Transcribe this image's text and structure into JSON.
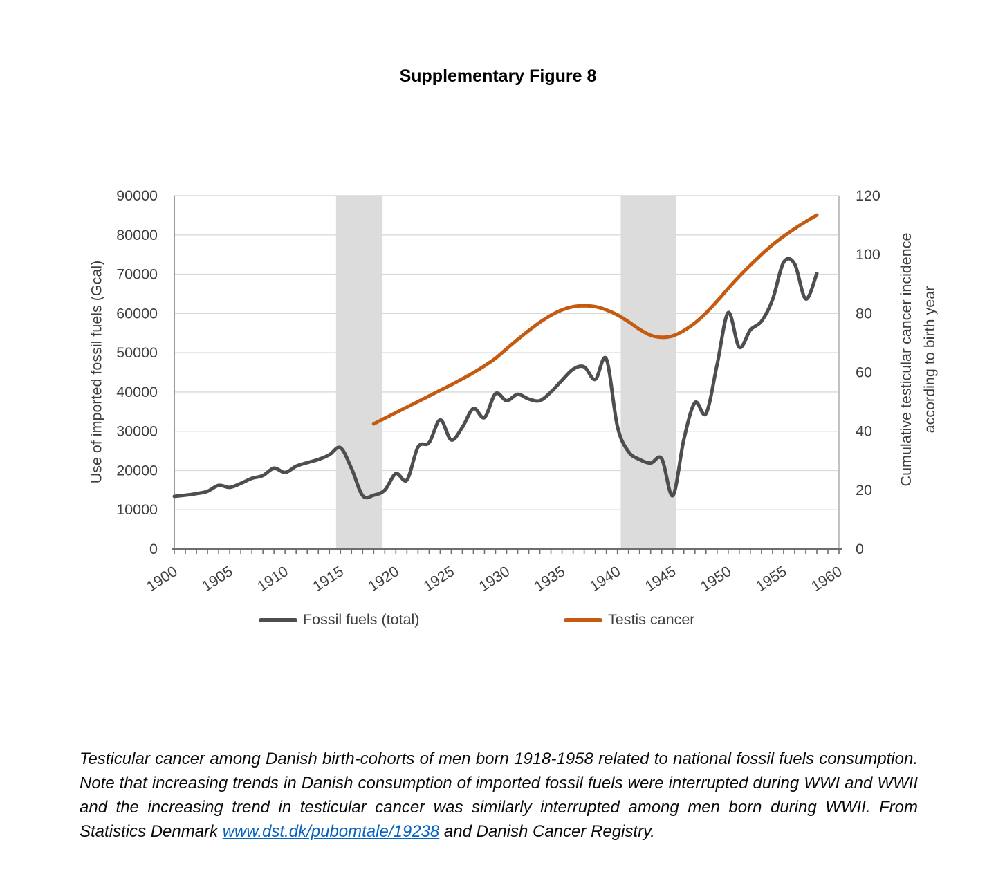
{
  "title": "Supplementary Figure 8",
  "chart_data": {
    "type": "line",
    "title": "Supplementary Figure 8",
    "grid": "horizontal",
    "legend_position": "bottom",
    "x_axis": {
      "min": 1900,
      "max": 1960,
      "minor_tick_step": 1,
      "tick_labels": [
        1900,
        1905,
        1910,
        1915,
        1920,
        1925,
        1930,
        1935,
        1940,
        1945,
        1950,
        1955,
        1960
      ]
    },
    "left_axis": {
      "label": "Use of imported fossil fuels (Gcal)",
      "min": 0,
      "max": 90000,
      "ticks": [
        0,
        10000,
        20000,
        30000,
        40000,
        50000,
        60000,
        70000,
        80000,
        90000
      ]
    },
    "right_axis": {
      "label_line1": "Cumulative testicular cancer incidence",
      "label_line2": "according to birth year",
      "min": 0,
      "max": 120,
      "ticks": [
        0,
        20,
        40,
        60,
        80,
        100,
        120
      ]
    },
    "shaded_bands": [
      {
        "name": "WWI",
        "from": 1914.6,
        "to": 1918.8,
        "color": "#dcdcdc"
      },
      {
        "name": "WWII",
        "from": 1940.3,
        "to": 1945.3,
        "color": "#dcdcdc"
      }
    ],
    "series": [
      {
        "name": "Fossil fuels (total)",
        "axis": "left",
        "color": "#4d4d52",
        "start_year": 1900,
        "values": [
          13400,
          13700,
          14100,
          14700,
          16200,
          15700,
          16700,
          18000,
          18700,
          20600,
          19500,
          21100,
          22000,
          22800,
          24000,
          25800,
          20500,
          13600,
          13700,
          15000,
          19200,
          17600,
          26000,
          27100,
          32900,
          27800,
          31000,
          35800,
          33500,
          39600,
          37800,
          39400,
          38200,
          37800,
          40000,
          43000,
          45800,
          46400,
          43200,
          48400,
          31200,
          24800,
          22800,
          21900,
          23000,
          13600,
          28000,
          37300,
          34500,
          47000,
          60200,
          51400,
          55800,
          58000,
          63500,
          73000,
          72600,
          63700,
          70200
        ]
      },
      {
        "name": "Testis cancer",
        "axis": "right",
        "color": "#c55a11",
        "start_year": 1918,
        "values": [
          42.5,
          44.4,
          46.3,
          48.2,
          50.1,
          52.0,
          53.9,
          55.8,
          57.8,
          59.9,
          62.2,
          64.8,
          68.0,
          71.2,
          74.2,
          77.0,
          79.4,
          81.2,
          82.3,
          82.6,
          82.3,
          81.2,
          79.5,
          77.2,
          74.6,
          72.6,
          71.9,
          72.4,
          74.2,
          76.8,
          80.2,
          84.2,
          88.5,
          92.6,
          96.4,
          100.0,
          103.3,
          106.2,
          108.8,
          111.2,
          113.4
        ]
      }
    ]
  },
  "caption": {
    "text_before_link": "Testicular cancer among Danish birth-cohorts of men born 1918-1958 related to national fossil fuels consumption. Note that increasing trends in Danish consumption of imported fossil fuels were interrupted during WWI and WWII and the increasing trend in testicular cancer was similarly interrupted among men born during WWII. From Statistics Denmark ",
    "link_text": "www.dst.dk/pubomtale/19238",
    "text_after_link": " and Danish Cancer Registry."
  }
}
